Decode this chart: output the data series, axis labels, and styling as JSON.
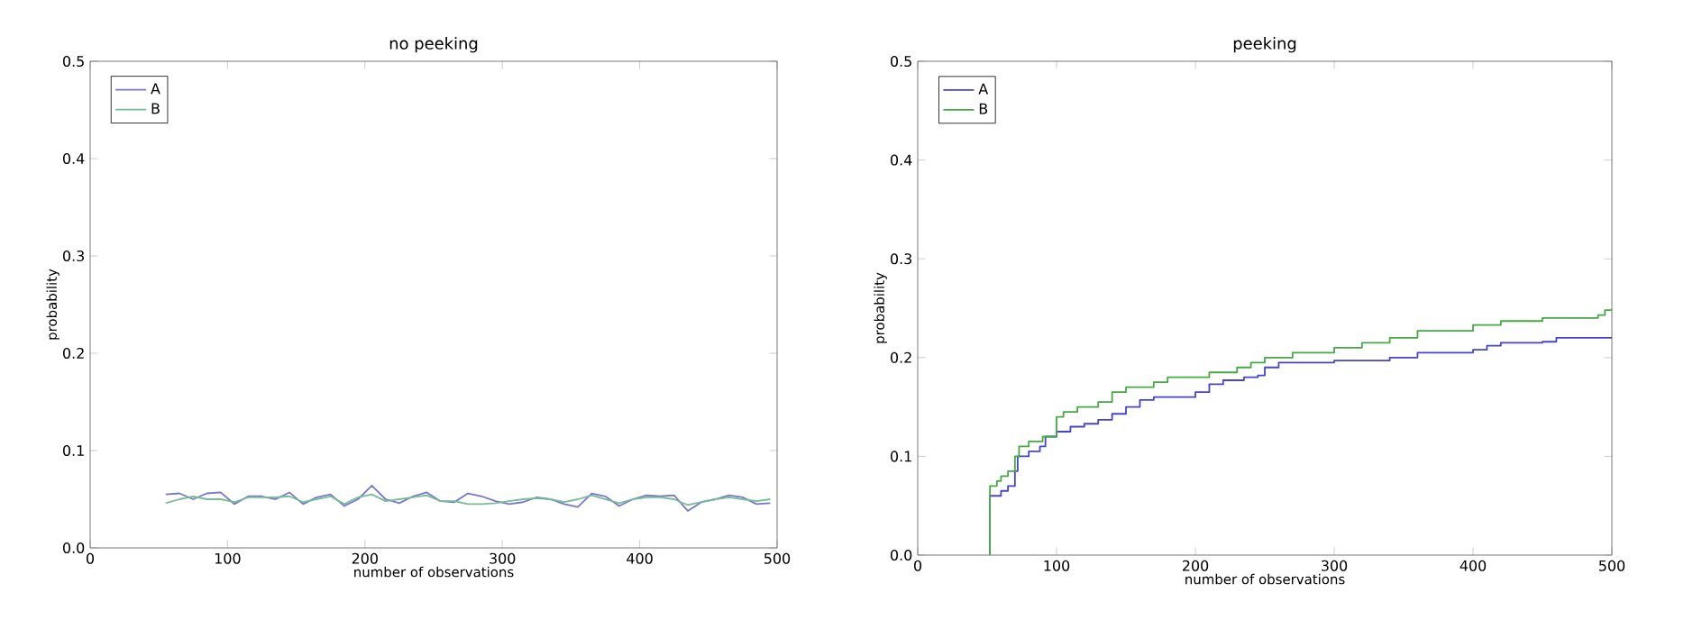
{
  "chart_data": [
    {
      "type": "line",
      "title": "no peeking",
      "xlabel": "number of observations",
      "ylabel": "probability",
      "xlim": [
        0,
        500
      ],
      "ylim": [
        0,
        0.5
      ],
      "xticks": [
        0,
        100,
        200,
        300,
        400,
        500
      ],
      "yticks": [
        {
          "value": 0,
          "label": "0.0"
        },
        0.1,
        0.2,
        0.3,
        0.4,
        0.5
      ],
      "legend": "top left",
      "x": [
        55,
        65,
        75,
        85,
        95,
        105,
        115,
        125,
        135,
        145,
        155,
        165,
        175,
        185,
        195,
        205,
        215,
        225,
        235,
        245,
        255,
        265,
        275,
        285,
        295,
        305,
        315,
        325,
        335,
        345,
        355,
        365,
        375,
        385,
        395,
        405,
        415,
        425,
        435,
        445,
        455,
        465,
        475,
        485,
        495
      ],
      "series": [
        {
          "name": "A",
          "color": "#7777cc",
          "values": [
            0.055,
            0.056,
            0.05,
            0.056,
            0.057,
            0.045,
            0.053,
            0.053,
            0.05,
            0.057,
            0.045,
            0.052,
            0.055,
            0.043,
            0.05,
            0.064,
            0.05,
            0.046,
            0.053,
            0.057,
            0.048,
            0.047,
            0.056,
            0.053,
            0.048,
            0.045,
            0.047,
            0.052,
            0.05,
            0.045,
            0.042,
            0.056,
            0.053,
            0.043,
            0.05,
            0.054,
            0.053,
            0.054,
            0.038,
            0.047,
            0.05,
            0.054,
            0.052,
            0.045,
            0.046
          ]
        },
        {
          "name": "B",
          "color": "#77bb99",
          "values": [
            0.046,
            0.05,
            0.053,
            0.05,
            0.05,
            0.047,
            0.052,
            0.052,
            0.052,
            0.053,
            0.047,
            0.05,
            0.053,
            0.045,
            0.052,
            0.055,
            0.048,
            0.05,
            0.052,
            0.054,
            0.048,
            0.048,
            0.045,
            0.045,
            0.046,
            0.048,
            0.05,
            0.051,
            0.05,
            0.047,
            0.05,
            0.054,
            0.05,
            0.046,
            0.05,
            0.052,
            0.052,
            0.05,
            0.044,
            0.047,
            0.05,
            0.052,
            0.05,
            0.048,
            0.05
          ]
        }
      ]
    },
    {
      "type": "step",
      "title": "peeking",
      "xlabel": "number of observations",
      "ylabel": "probability",
      "xlim": [
        0,
        500
      ],
      "ylim": [
        0,
        0.5
      ],
      "xticks": [
        0,
        100,
        200,
        300,
        400,
        500
      ],
      "yticks": [
        {
          "value": 0,
          "label": "0.0"
        },
        0.1,
        0.2,
        0.3,
        0.4,
        0.5
      ],
      "legend": "top left",
      "series": [
        {
          "name": "A",
          "color": "#4444cc",
          "x": [
            52,
            52,
            55,
            60,
            65,
            70,
            72,
            80,
            88,
            92,
            100,
            110,
            120,
            130,
            140,
            150,
            160,
            170,
            190,
            200,
            210,
            220,
            235,
            245,
            250,
            260,
            300,
            340,
            360,
            400,
            410,
            420,
            450,
            460,
            500
          ],
          "values": [
            0,
            0.06,
            0.06,
            0.065,
            0.07,
            0.085,
            0.1,
            0.105,
            0.11,
            0.12,
            0.125,
            0.13,
            0.133,
            0.137,
            0.143,
            0.15,
            0.157,
            0.16,
            0.16,
            0.165,
            0.173,
            0.177,
            0.18,
            0.182,
            0.19,
            0.195,
            0.197,
            0.2,
            0.205,
            0.208,
            0.212,
            0.215,
            0.216,
            0.22,
            0.221
          ]
        },
        {
          "name": "B",
          "color": "#44aa44",
          "x": [
            52,
            52,
            57,
            60,
            65,
            70,
            73,
            80,
            90,
            100,
            105,
            115,
            130,
            140,
            150,
            170,
            180,
            200,
            210,
            230,
            240,
            250,
            270,
            300,
            320,
            340,
            360,
            400,
            420,
            450,
            490,
            495,
            500
          ],
          "values": [
            0,
            0.07,
            0.075,
            0.08,
            0.085,
            0.1,
            0.11,
            0.115,
            0.12,
            0.14,
            0.145,
            0.15,
            0.155,
            0.165,
            0.17,
            0.175,
            0.18,
            0.18,
            0.185,
            0.19,
            0.195,
            0.2,
            0.205,
            0.21,
            0.215,
            0.22,
            0.227,
            0.233,
            0.237,
            0.24,
            0.243,
            0.248,
            0.25
          ]
        }
      ]
    }
  ]
}
